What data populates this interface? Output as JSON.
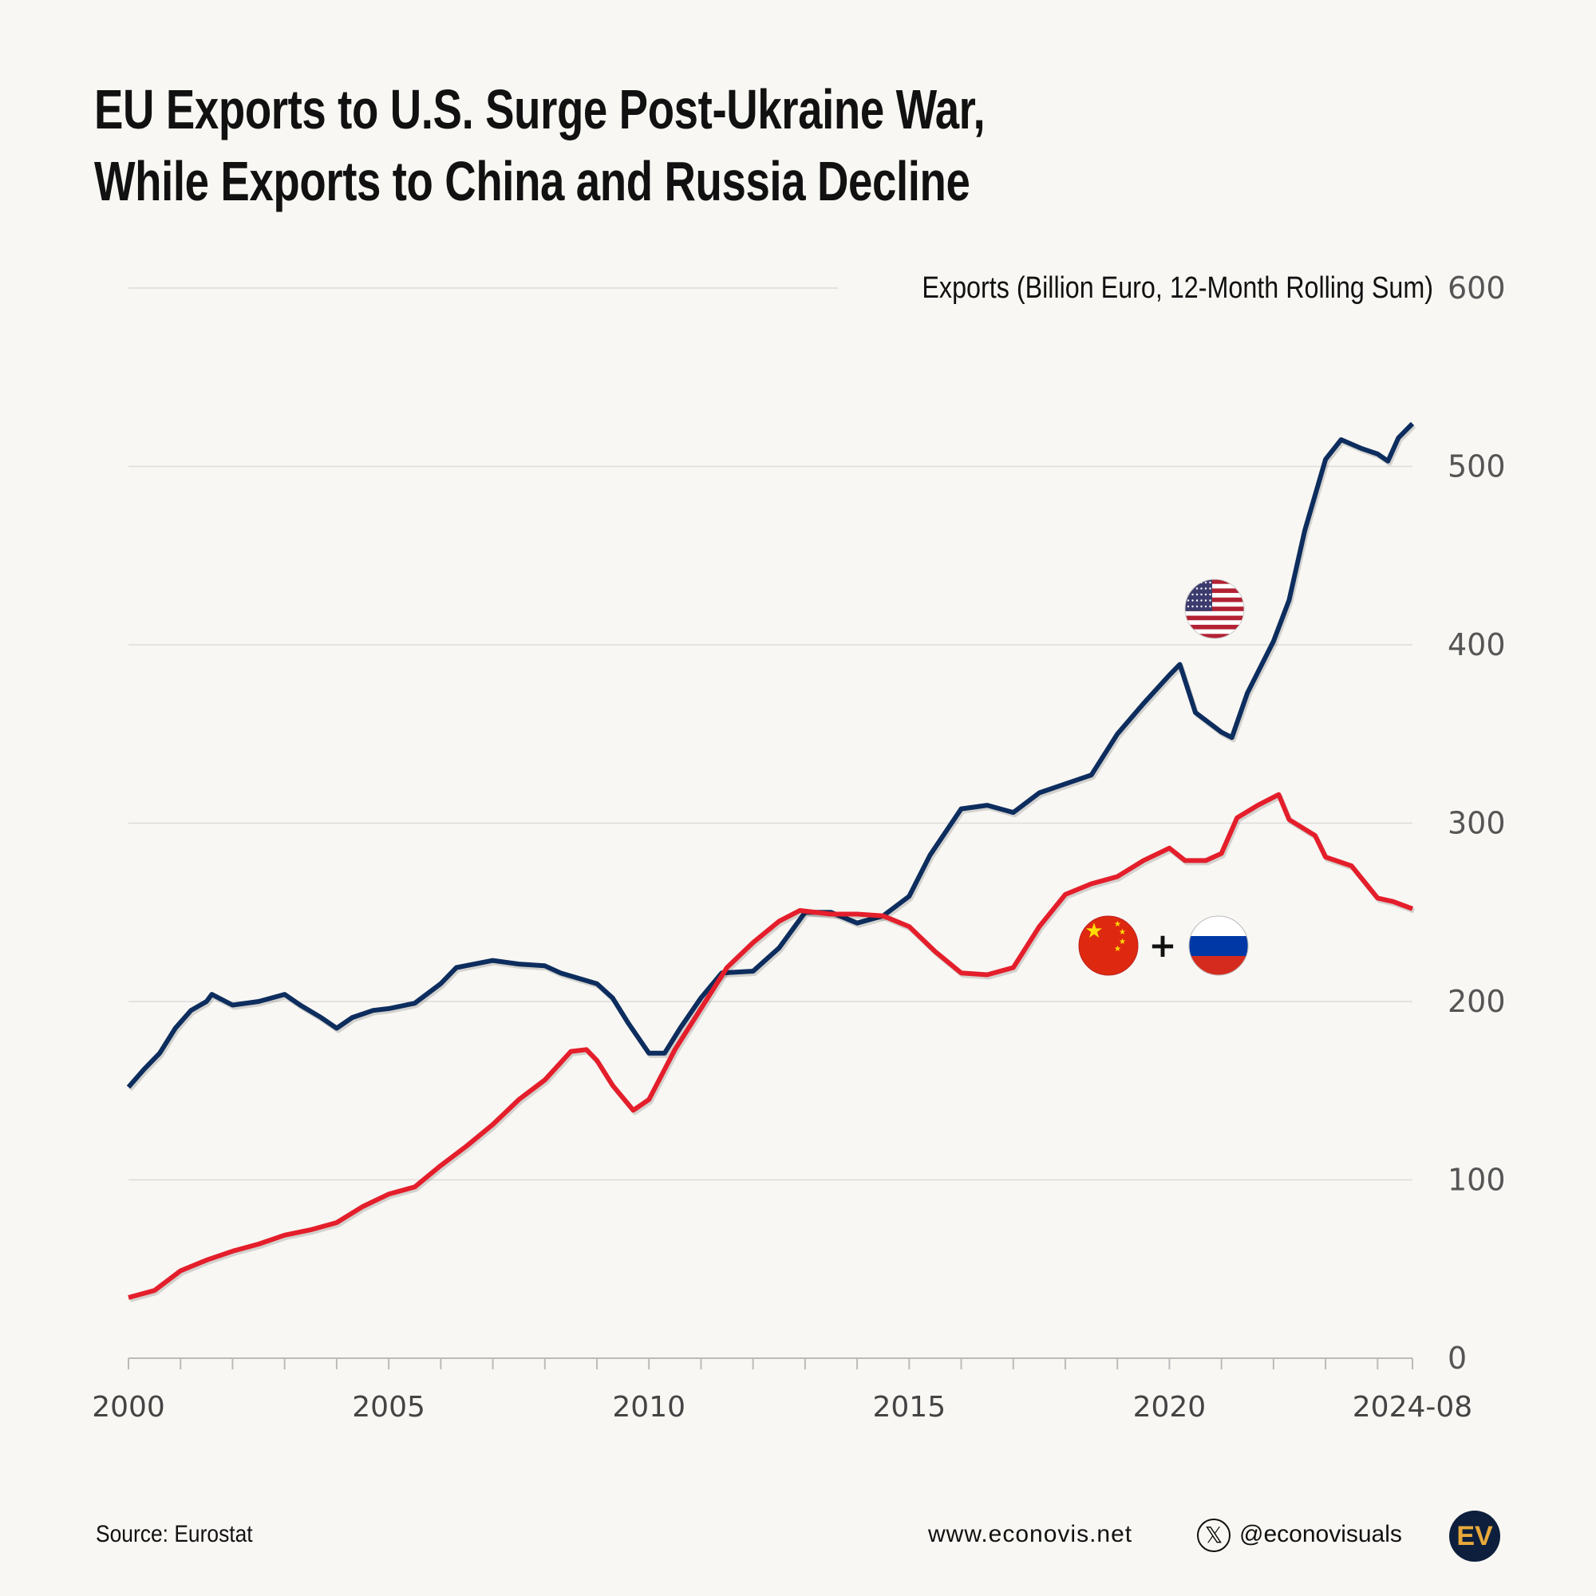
{
  "title_line1": "EU Exports to U.S. Surge Post-Ukraine War,",
  "title_line2": "While Exports to China and Russia Decline",
  "footer": {
    "source": "Source: Eurostat",
    "website": "www.econovis.net",
    "handle": "@econovisuals",
    "logo": "EV"
  },
  "chart_data": {
    "type": "line",
    "ylabel": "Exports (Billion Euro, 12-Month Rolling Sum)",
    "ylim": [
      0,
      600
    ],
    "yticks": [
      0,
      100,
      200,
      300,
      400,
      500,
      600
    ],
    "xlim": [
      2000.0,
      2024.67
    ],
    "xticks": [
      {
        "x": 2000,
        "label": "2000"
      },
      {
        "x": 2005,
        "label": "2005"
      },
      {
        "x": 2010,
        "label": "2010"
      },
      {
        "x": 2015,
        "label": "2015"
      },
      {
        "x": 2020,
        "label": "2020"
      },
      {
        "x": 2024.67,
        "label": "2024-08"
      }
    ],
    "grid": true,
    "colors": {
      "us": "#0d2d5e",
      "china_russia": "#e41e2b",
      "background": "#f8f7f3"
    },
    "series": [
      {
        "id": "us",
        "icon": "us-flag-icon",
        "x": [
          2000.0,
          2000.3,
          2000.6,
          2000.9,
          2001.2,
          2001.5,
          2001.6,
          2002.0,
          2002.5,
          2003.0,
          2003.3,
          2003.7,
          2004.0,
          2004.3,
          2004.7,
          2005.0,
          2005.5,
          2006.0,
          2006.3,
          2007.0,
          2007.5,
          2008.0,
          2008.3,
          2009.0,
          2009.3,
          2009.6,
          2010.0,
          2010.3,
          2010.6,
          2011.0,
          2011.4,
          2012.0,
          2012.5,
          2013.0,
          2013.5,
          2014.0,
          2014.5,
          2015.0,
          2015.4,
          2016.0,
          2016.5,
          2017.0,
          2017.5,
          2018.0,
          2018.5,
          2019.0,
          2019.5,
          2020.0,
          2020.2,
          2020.5,
          2021.0,
          2021.2,
          2021.5,
          2022.0,
          2022.3,
          2022.6,
          2023.0,
          2023.3,
          2023.7,
          2024.0,
          2024.2,
          2024.4,
          2024.67
        ],
        "values": [
          152,
          162,
          171,
          185,
          195,
          200,
          204,
          198,
          200,
          204,
          198,
          191,
          185,
          191,
          195,
          196,
          199,
          210,
          219,
          223,
          221,
          220,
          216,
          210,
          202,
          188,
          171,
          171,
          185,
          202,
          216,
          217,
          230,
          250,
          250,
          244,
          248,
          259,
          282,
          308,
          310,
          306,
          317,
          322,
          327,
          350,
          367,
          383,
          389,
          362,
          351,
          348,
          373,
          402,
          425,
          464,
          504,
          515,
          510,
          507,
          503,
          516,
          524
        ]
      },
      {
        "id": "china_russia",
        "icon": "china-russia-flags-icon",
        "x": [
          2000.0,
          2000.5,
          2001.0,
          2001.5,
          2002.0,
          2002.5,
          2003.0,
          2003.5,
          2004.0,
          2004.5,
          2005.0,
          2005.5,
          2006.0,
          2006.5,
          2007.0,
          2007.5,
          2008.0,
          2008.5,
          2008.8,
          2009.0,
          2009.3,
          2009.7,
          2010.0,
          2010.5,
          2011.0,
          2011.5,
          2012.0,
          2012.5,
          2012.9,
          2013.5,
          2014.0,
          2014.5,
          2015.0,
          2015.5,
          2016.0,
          2016.5,
          2017.0,
          2017.5,
          2018.0,
          2018.5,
          2019.0,
          2019.5,
          2020.0,
          2020.3,
          2020.7,
          2021.0,
          2021.3,
          2021.7,
          2022.1,
          2022.3,
          2022.8,
          2023.0,
          2023.5,
          2024.0,
          2024.3,
          2024.67
        ],
        "values": [
          34,
          38,
          49,
          55,
          60,
          64,
          69,
          72,
          76,
          85,
          92,
          96,
          108,
          119,
          131,
          145,
          156,
          172,
          173,
          167,
          153,
          139,
          145,
          173,
          196,
          219,
          233,
          245,
          251,
          249,
          249,
          248,
          242,
          228,
          216,
          215,
          219,
          242,
          260,
          266,
          270,
          279,
          286,
          279,
          279,
          283,
          303,
          310,
          316,
          302,
          293,
          281,
          276,
          258,
          256,
          252
        ]
      }
    ]
  }
}
